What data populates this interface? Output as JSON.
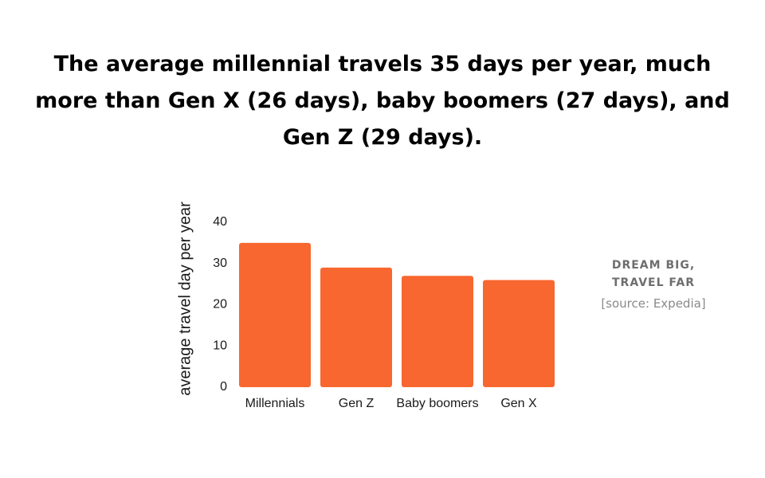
{
  "title": "The average millennial travels 35 days per year, much more than Gen X (26 days), baby boomers (27 days), and Gen Z (29 days).",
  "side_note": {
    "tagline_line1": "DREAM BIG,",
    "tagline_line2": "TRAVEL FAR",
    "source": "[source: Expedia]"
  },
  "colors": {
    "bar": "#F8672F",
    "text": "#000000"
  },
  "chart_data": {
    "type": "bar",
    "categories": [
      "Millennials",
      "Gen Z",
      "Baby boomers",
      "Gen X"
    ],
    "values": [
      35,
      29,
      27,
      26
    ],
    "title": "",
    "xlabel": "",
    "ylabel": "average travel day per year",
    "ylim": [
      0,
      40
    ],
    "yticks": [
      0,
      10,
      20,
      30,
      40
    ],
    "grid": false,
    "legend": "none"
  }
}
